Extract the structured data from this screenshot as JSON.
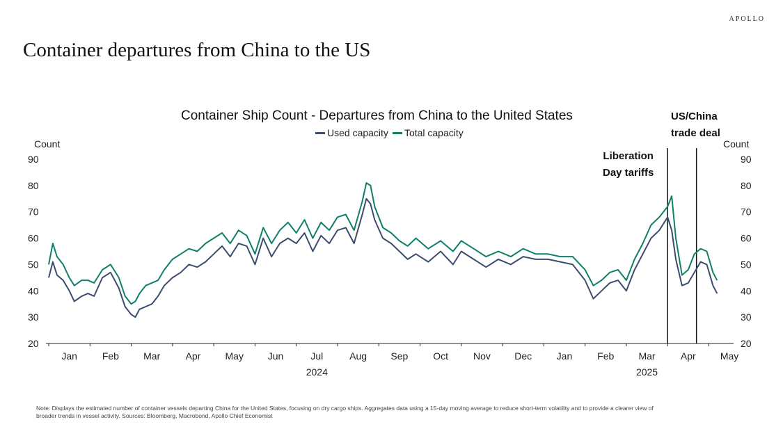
{
  "brand": "APOLLO",
  "page_title": "Container departures from China to the US",
  "note": "Note: Displays the estimated number of container vessels departing China for the United States, focusing on dry cargo ships. Aggregates data using a 15-day moving average to reduce short-term volatility and to provide a clearer view of broader trends in vessel activity. Sources: Bloomberg, Macrobond, Apollo Chief Economist",
  "chart_data": {
    "type": "line",
    "title": "Container Ship Count - Departures from China to the United States",
    "ylabel_left": "Count",
    "ylabel_right": "Count",
    "ylim": [
      20,
      90
    ],
    "yticks": [
      20,
      30,
      40,
      50,
      60,
      70,
      80,
      90
    ],
    "month_labels": [
      "Jan",
      "Feb",
      "Mar",
      "Apr",
      "May",
      "Jun",
      "Jul",
      "Aug",
      "Sep",
      "Oct",
      "Nov",
      "Dec",
      "Jan",
      "Feb",
      "Mar",
      "Apr",
      "May"
    ],
    "year_labels": [
      {
        "label": "2024",
        "month_index": 6
      },
      {
        "label": "2025",
        "month_index": 14
      }
    ],
    "x_range_months": [
      0,
      16.6
    ],
    "legend": [
      "Used capacity",
      "Total capacity"
    ],
    "colors": {
      "used": "#3b4d6e",
      "total": "#0f7f68",
      "axis": "#222222",
      "event": "#111111"
    },
    "events": [
      {
        "month": 15.0,
        "label_lines": [
          "Liberation",
          "Day tariffs"
        ]
      },
      {
        "month": 15.7,
        "label_lines": [
          "US/China",
          "trade deal"
        ]
      }
    ],
    "series": [
      {
        "name": "Used capacity",
        "x": [
          0,
          0.1,
          0.2,
          0.35,
          0.5,
          0.62,
          0.8,
          0.95,
          1.1,
          1.3,
          1.5,
          1.7,
          1.85,
          2.0,
          2.1,
          2.2,
          2.35,
          2.5,
          2.65,
          2.8,
          3.0,
          3.2,
          3.4,
          3.6,
          3.8,
          4.0,
          4.2,
          4.4,
          4.6,
          4.8,
          5.0,
          5.2,
          5.4,
          5.6,
          5.8,
          6.0,
          6.2,
          6.4,
          6.6,
          6.8,
          7.0,
          7.2,
          7.4,
          7.6,
          7.7,
          7.8,
          7.9,
          8.1,
          8.3,
          8.5,
          8.7,
          8.9,
          9.2,
          9.5,
          9.8,
          10.0,
          10.3,
          10.6,
          10.9,
          11.2,
          11.5,
          11.8,
          12.1,
          12.4,
          12.7,
          13.0,
          13.2,
          13.4,
          13.6,
          13.8,
          14.0,
          14.2,
          14.4,
          14.6,
          14.8,
          15.0,
          15.1,
          15.2,
          15.35,
          15.5,
          15.65,
          15.8,
          15.95,
          16.1,
          16.2
        ],
        "values": [
          45,
          51,
          46,
          44,
          40,
          36,
          38,
          39,
          38,
          45,
          47,
          41,
          34,
          31,
          30,
          33,
          34,
          35,
          38,
          42,
          45,
          47,
          50,
          49,
          51,
          54,
          57,
          53,
          58,
          57,
          50,
          60,
          53,
          58,
          60,
          58,
          62,
          55,
          61,
          58,
          63,
          64,
          58,
          69,
          75,
          73,
          67,
          60,
          58,
          55,
          52,
          54,
          51,
          55,
          50,
          55,
          52,
          49,
          52,
          50,
          53,
          52,
          52,
          51,
          50,
          44,
          37,
          40,
          43,
          44,
          40,
          48,
          54,
          60,
          63,
          68,
          63,
          52,
          42,
          43,
          47,
          51,
          50,
          42,
          39
        ]
      },
      {
        "name": "Total capacity",
        "x": [
          0,
          0.1,
          0.2,
          0.35,
          0.5,
          0.62,
          0.8,
          0.95,
          1.1,
          1.3,
          1.5,
          1.7,
          1.85,
          2.0,
          2.1,
          2.2,
          2.35,
          2.5,
          2.65,
          2.8,
          3.0,
          3.2,
          3.4,
          3.6,
          3.8,
          4.0,
          4.2,
          4.4,
          4.6,
          4.8,
          5.0,
          5.2,
          5.4,
          5.6,
          5.8,
          6.0,
          6.2,
          6.4,
          6.6,
          6.8,
          7.0,
          7.2,
          7.4,
          7.6,
          7.7,
          7.8,
          7.9,
          8.1,
          8.3,
          8.5,
          8.7,
          8.9,
          9.2,
          9.5,
          9.8,
          10.0,
          10.3,
          10.6,
          10.9,
          11.2,
          11.5,
          11.8,
          12.1,
          12.4,
          12.7,
          13.0,
          13.2,
          13.4,
          13.6,
          13.8,
          14.0,
          14.2,
          14.4,
          14.6,
          14.8,
          15.0,
          15.1,
          15.2,
          15.35,
          15.5,
          15.65,
          15.8,
          15.95,
          16.1,
          16.2
        ],
        "values": [
          50,
          58,
          53,
          50,
          45,
          42,
          44,
          44,
          43,
          48,
          50,
          45,
          38,
          35,
          36,
          39,
          42,
          43,
          44,
          48,
          52,
          54,
          56,
          55,
          58,
          60,
          62,
          58,
          63,
          61,
          54,
          64,
          58,
          63,
          66,
          62,
          67,
          60,
          66,
          63,
          68,
          69,
          63,
          74,
          81,
          80,
          72,
          64,
          62,
          59,
          57,
          60,
          56,
          59,
          55,
          59,
          56,
          53,
          55,
          53,
          56,
          54,
          54,
          53,
          53,
          48,
          42,
          44,
          47,
          48,
          44,
          52,
          58,
          65,
          68,
          72,
          76,
          60,
          46,
          48,
          54,
          56,
          55,
          47,
          44
        ]
      }
    ]
  }
}
